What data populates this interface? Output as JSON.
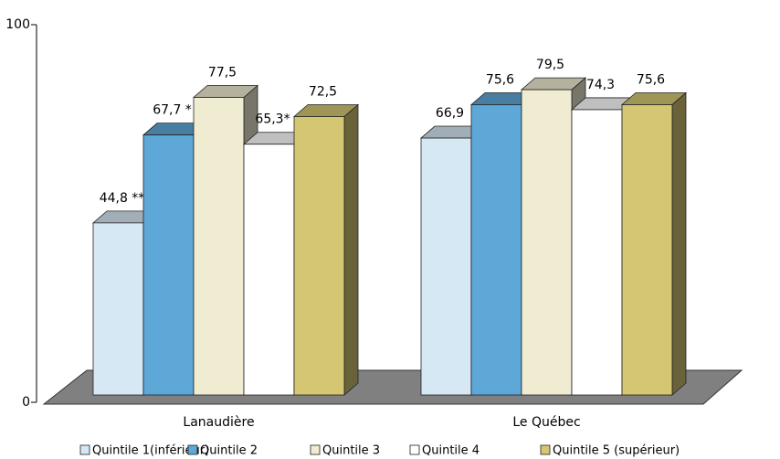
{
  "chart_data": {
    "type": "bar3d",
    "categories": [
      "Lanaudière",
      "Le Québec"
    ],
    "series": [
      {
        "name": "Quintile 1(inférieur)",
        "color": "#d6e8f4",
        "values": [
          44.8,
          66.9
        ],
        "value_labels": [
          "44,8 **",
          "66,9"
        ]
      },
      {
        "name": "Quintile 2",
        "color": "#5ea8d8",
        "values": [
          67.7,
          75.6
        ],
        "value_labels": [
          "67,7 *",
          "75,6"
        ]
      },
      {
        "name": "Quintile 3",
        "color": "#f0ecd2",
        "values": [
          77.5,
          79.5
        ],
        "value_labels": [
          "77,5",
          "79,5"
        ]
      },
      {
        "name": "Quintile 4",
        "color": "#ffffff",
        "values": [
          65.3,
          74.3
        ],
        "value_labels": [
          "65,3*",
          "74,3"
        ]
      },
      {
        "name": "Quintile 5 (supérieur)",
        "color": "#d4c673",
        "values": [
          72.5,
          75.6
        ],
        "value_labels": [
          "72,5",
          "75,6"
        ]
      }
    ],
    "ylim": [
      0,
      100
    ],
    "yticks": [
      0,
      100
    ],
    "legend": "bottom"
  }
}
